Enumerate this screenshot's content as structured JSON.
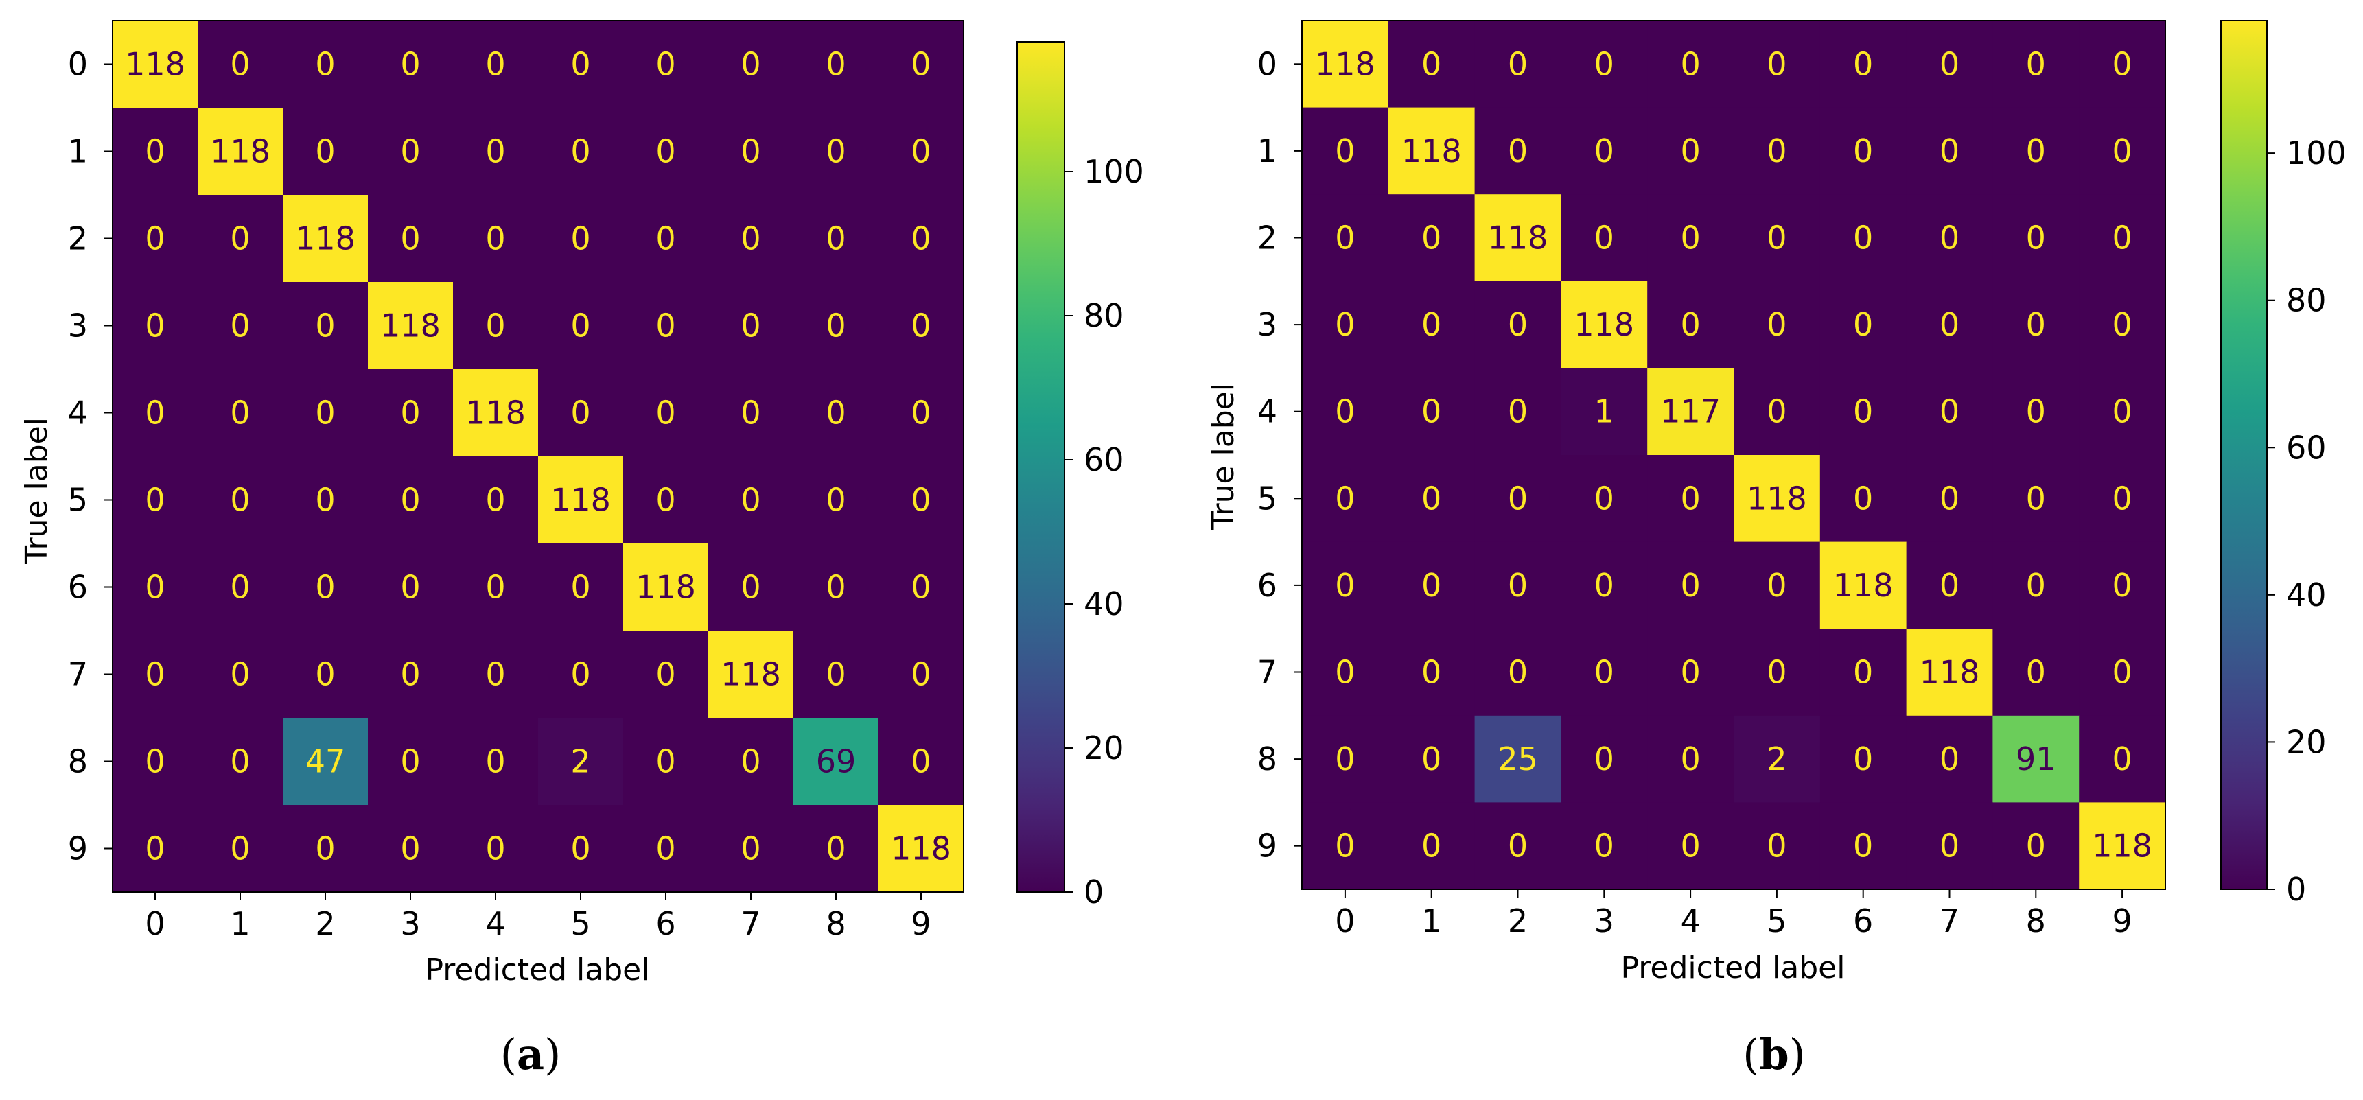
{
  "chart_data": [
    {
      "type": "heatmap",
      "caption_open": "(",
      "caption_letter": "a",
      "caption_close": ")",
      "xlabel": "Predicted label",
      "ylabel": "True label",
      "x_categories": [
        "0",
        "1",
        "2",
        "3",
        "4",
        "5",
        "6",
        "7",
        "8",
        "9"
      ],
      "y_categories": [
        "0",
        "1",
        "2",
        "3",
        "4",
        "5",
        "6",
        "7",
        "8",
        "9"
      ],
      "matrix": [
        [
          118,
          0,
          0,
          0,
          0,
          0,
          0,
          0,
          0,
          0
        ],
        [
          0,
          118,
          0,
          0,
          0,
          0,
          0,
          0,
          0,
          0
        ],
        [
          0,
          0,
          118,
          0,
          0,
          0,
          0,
          0,
          0,
          0
        ],
        [
          0,
          0,
          0,
          118,
          0,
          0,
          0,
          0,
          0,
          0
        ],
        [
          0,
          0,
          0,
          0,
          118,
          0,
          0,
          0,
          0,
          0
        ],
        [
          0,
          0,
          0,
          0,
          0,
          118,
          0,
          0,
          0,
          0
        ],
        [
          0,
          0,
          0,
          0,
          0,
          0,
          118,
          0,
          0,
          0
        ],
        [
          0,
          0,
          0,
          0,
          0,
          0,
          0,
          118,
          0,
          0
        ],
        [
          0,
          0,
          47,
          0,
          0,
          2,
          0,
          0,
          69,
          0
        ],
        [
          0,
          0,
          0,
          0,
          0,
          0,
          0,
          0,
          0,
          118
        ]
      ],
      "colormap": "viridis",
      "vmin": 0,
      "vmax": 118,
      "colorbar_ticks": [
        0,
        20,
        40,
        60,
        80,
        100
      ],
      "colorbar_tick_labels": [
        "0",
        "20",
        "40",
        "60",
        "80",
        "100"
      ],
      "label_color_light": "#fde725",
      "label_color_dark": "#440154"
    },
    {
      "type": "heatmap",
      "caption_open": "(",
      "caption_letter": "b",
      "caption_close": ")",
      "xlabel": "Predicted label",
      "ylabel": "True label",
      "x_categories": [
        "0",
        "1",
        "2",
        "3",
        "4",
        "5",
        "6",
        "7",
        "8",
        "9"
      ],
      "y_categories": [
        "0",
        "1",
        "2",
        "3",
        "4",
        "5",
        "6",
        "7",
        "8",
        "9"
      ],
      "matrix": [
        [
          118,
          0,
          0,
          0,
          0,
          0,
          0,
          0,
          0,
          0
        ],
        [
          0,
          118,
          0,
          0,
          0,
          0,
          0,
          0,
          0,
          0
        ],
        [
          0,
          0,
          118,
          0,
          0,
          0,
          0,
          0,
          0,
          0
        ],
        [
          0,
          0,
          0,
          118,
          0,
          0,
          0,
          0,
          0,
          0
        ],
        [
          0,
          0,
          0,
          1,
          117,
          0,
          0,
          0,
          0,
          0
        ],
        [
          0,
          0,
          0,
          0,
          0,
          118,
          0,
          0,
          0,
          0
        ],
        [
          0,
          0,
          0,
          0,
          0,
          0,
          118,
          0,
          0,
          0
        ],
        [
          0,
          0,
          0,
          0,
          0,
          0,
          0,
          118,
          0,
          0
        ],
        [
          0,
          0,
          25,
          0,
          0,
          2,
          0,
          0,
          91,
          0
        ],
        [
          0,
          0,
          0,
          0,
          0,
          0,
          0,
          0,
          0,
          118
        ]
      ],
      "colormap": "viridis",
      "vmin": 0,
      "vmax": 118,
      "colorbar_ticks": [
        0,
        20,
        40,
        60,
        80,
        100
      ],
      "colorbar_tick_labels": [
        "0",
        "20",
        "40",
        "60",
        "80",
        "100"
      ],
      "label_color_light": "#fde725",
      "label_color_dark": "#440154"
    }
  ]
}
